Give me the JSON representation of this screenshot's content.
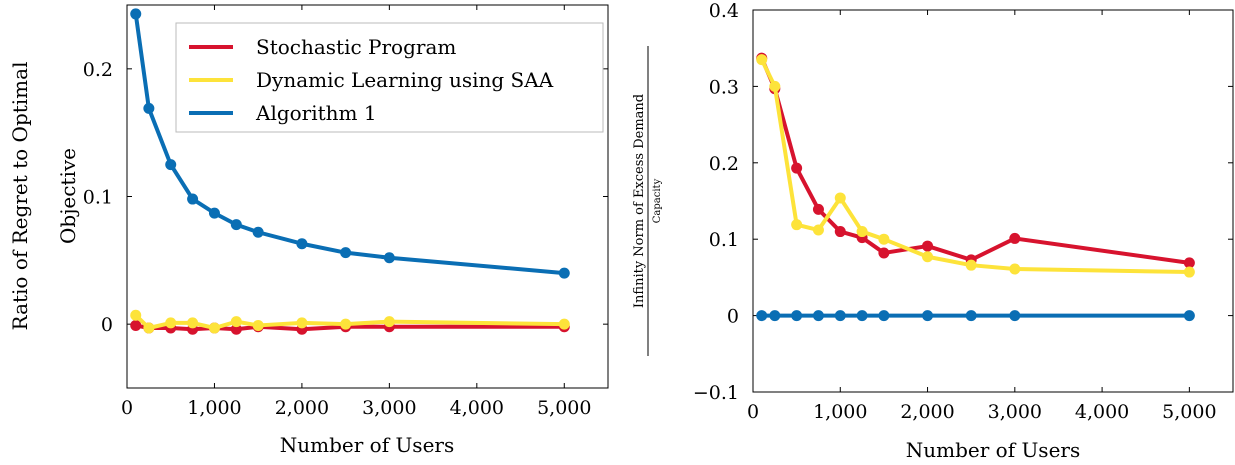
{
  "chart_data": [
    {
      "type": "line",
      "xlabel": "Number of Users",
      "ylabel_lines": [
        "Ratio of Regret to Optimal",
        "Objective"
      ],
      "xlim": [
        0,
        5500
      ],
      "ylim": [
        -0.05,
        0.25
      ],
      "xticks": [
        0,
        1000,
        2000,
        3000,
        4000,
        5000
      ],
      "xtick_labels": [
        "0",
        "1,000",
        "2,000",
        "3,000",
        "4,000",
        "5,000"
      ],
      "yticks": [
        0,
        0.1,
        0.2
      ],
      "ytick_labels": [
        "0",
        "0.1",
        "0.2"
      ],
      "grid": false,
      "legend_position": "top-right",
      "legend": [
        "Stochastic Program",
        "Dynamic Learning using SAA",
        "Algorithm 1"
      ],
      "series": [
        {
          "name": "Stochastic Program",
          "color": "#d7132e",
          "x": [
            100,
            250,
            500,
            750,
            1000,
            1250,
            1500,
            2000,
            2500,
            3000,
            5000
          ],
          "y": [
            -0.001,
            -0.003,
            -0.003,
            -0.004,
            -0.003,
            -0.004,
            -0.002,
            -0.004,
            -0.002,
            -0.002,
            -0.002
          ]
        },
        {
          "name": "Dynamic Learning using SAA",
          "color": "#fde33a",
          "x": [
            100,
            250,
            500,
            750,
            1000,
            1250,
            1500,
            2000,
            2500,
            3000,
            5000
          ],
          "y": [
            0.007,
            -0.003,
            0.001,
            0.001,
            -0.003,
            0.002,
            -0.001,
            0.001,
            0.0,
            0.002,
            0.0
          ]
        },
        {
          "name": "Algorithm 1",
          "color": "#0a6eb4",
          "x": [
            100,
            250,
            500,
            750,
            1000,
            1250,
            1500,
            2000,
            2500,
            3000,
            5000
          ],
          "y": [
            0.243,
            0.169,
            0.125,
            0.098,
            0.087,
            0.078,
            0.072,
            0.063,
            0.056,
            0.052,
            0.04
          ]
        }
      ]
    },
    {
      "type": "line",
      "xlabel": "Number of Users",
      "ylabel_numerator": "Infinity Norm of Excess Demand",
      "ylabel_denominator": "Capacity",
      "xlim": [
        0,
        5500
      ],
      "ylim": [
        -0.1,
        0.4
      ],
      "xticks": [
        0,
        1000,
        2000,
        3000,
        4000,
        5000
      ],
      "xtick_labels": [
        "0",
        "1,000",
        "2,000",
        "3,000",
        "4,000",
        "5,000"
      ],
      "yticks": [
        -0.1,
        0,
        0.1,
        0.2,
        0.3,
        0.4
      ],
      "ytick_labels": [
        "−0.1",
        "0",
        "0.1",
        "0.2",
        "0.3",
        "0.4"
      ],
      "grid": false,
      "series": [
        {
          "name": "Stochastic Program",
          "color": "#d7132e",
          "x": [
            100,
            250,
            500,
            750,
            1000,
            1250,
            1500,
            2000,
            2500,
            3000,
            5000
          ],
          "y": [
            0.337,
            0.297,
            0.193,
            0.139,
            0.11,
            0.102,
            0.082,
            0.091,
            0.073,
            0.101,
            0.069
          ]
        },
        {
          "name": "Dynamic Learning using SAA",
          "color": "#fde33a",
          "x": [
            100,
            250,
            500,
            750,
            1000,
            1250,
            1500,
            2000,
            2500,
            3000,
            5000
          ],
          "y": [
            0.335,
            0.3,
            0.119,
            0.112,
            0.154,
            0.11,
            0.1,
            0.077,
            0.066,
            0.061,
            0.057
          ]
        },
        {
          "name": "Algorithm 1",
          "color": "#0a6eb4",
          "x": [
            100,
            250,
            500,
            750,
            1000,
            1250,
            1500,
            2000,
            2500,
            3000,
            5000
          ],
          "y": [
            0,
            0,
            0,
            0,
            0,
            0,
            0,
            0,
            0,
            0,
            0
          ]
        }
      ]
    }
  ]
}
